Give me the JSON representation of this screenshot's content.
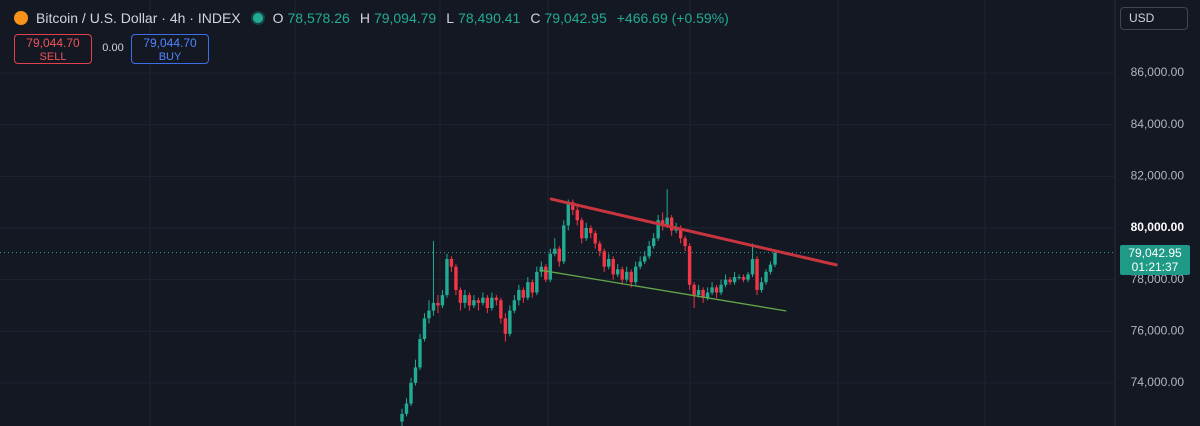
{
  "header": {
    "title": "Bitcoin / U.S. Dollar · 4h · INDEX",
    "open_key": "O",
    "open": "78,578.26",
    "high_key": "H",
    "high": "79,094.79",
    "low_key": "L",
    "low": "78,490.41",
    "close_key": "C",
    "close": "79,042.95",
    "change": "+466.69 (+0.59%)"
  },
  "trade": {
    "sell_price": "79,044.70",
    "sell": "SELL",
    "spread": "0.00",
    "buy_price": "79,044.70",
    "buy": "BUY"
  },
  "currency": "USD",
  "chart_data": {
    "type": "candlestick",
    "up_color": "#22ab94",
    "down_color": "#f23645",
    "open": [
      72500,
      72800,
      73200,
      74000,
      74600,
      75700,
      76500,
      76800,
      77100,
      77000,
      77400,
      78800,
      78500,
      77600,
      77100,
      77400,
      77000,
      77200,
      77100,
      77300,
      76900,
      77300,
      77200,
      76500,
      75900,
      76800,
      77200,
      77600,
      77300,
      77900,
      77500,
      78300,
      78500,
      78000,
      79000,
      79200,
      78700,
      80100,
      81000,
      80700,
      80300,
      79600,
      80000,
      79800,
      79400,
      79100,
      78500,
      78800,
      78200,
      78400,
      78000,
      78300,
      77900,
      78500,
      78700,
      78900,
      79300,
      79600,
      80300,
      80100,
      80400,
      79900,
      80000,
      79600,
      79300,
      77800,
      77400,
      77600,
      77300,
      77500,
      77700,
      77500,
      77800,
      78000,
      77900,
      78100,
      78100,
      78000,
      78200,
      78800,
      77600,
      77900,
      78300,
      78578.26
    ],
    "high": [
      73000,
      73400,
      74200,
      74900,
      75900,
      76700,
      77200,
      79500,
      77400,
      77600,
      79000,
      78900,
      78600,
      77700,
      77600,
      77500,
      77400,
      77300,
      77500,
      77400,
      77500,
      77400,
      77300,
      76700,
      77000,
      77400,
      77800,
      77700,
      78100,
      78000,
      78500,
      78700,
      78600,
      79200,
      79600,
      79300,
      80300,
      81100,
      81100,
      80900,
      80400,
      80200,
      80100,
      79900,
      79500,
      79200,
      79000,
      78900,
      78600,
      78500,
      78500,
      78400,
      78700,
      78900,
      79100,
      79500,
      79800,
      80500,
      80600,
      81500,
      80500,
      80200,
      80100,
      79700,
      79400,
      77900,
      77800,
      77700,
      77700,
      77900,
      77800,
      78000,
      78200,
      78100,
      78300,
      78200,
      78200,
      78300,
      79400,
      78900,
      78100,
      78400,
      78700,
      79094.79
    ],
    "low": [
      72300,
      72700,
      73100,
      73900,
      74500,
      75600,
      76300,
      76600,
      76700,
      76900,
      77300,
      78300,
      77400,
      76800,
      76900,
      76800,
      76900,
      76800,
      77000,
      76700,
      76800,
      77000,
      76300,
      75600,
      75800,
      76700,
      77000,
      77100,
      77200,
      77300,
      77400,
      78100,
      77900,
      77900,
      78900,
      78500,
      78600,
      79900,
      80500,
      80100,
      79400,
      79500,
      79600,
      79200,
      78900,
      78300,
      78400,
      78000,
      78100,
      77800,
      77900,
      77700,
      77800,
      78400,
      78600,
      78800,
      79200,
      79500,
      79900,
      80000,
      79700,
      79800,
      79400,
      79100,
      77600,
      76900,
      77300,
      77100,
      77200,
      77400,
      77300,
      77400,
      77700,
      77800,
      77800,
      78000,
      77900,
      77900,
      78100,
      77400,
      77500,
      77800,
      78200,
      78490.41
    ],
    "close": [
      72800,
      73200,
      74000,
      74600,
      75700,
      76500,
      76800,
      77100,
      77000,
      77400,
      78800,
      78500,
      77600,
      77100,
      77400,
      77000,
      77200,
      77100,
      77300,
      76900,
      77300,
      77200,
      76500,
      75900,
      76800,
      77200,
      77600,
      77300,
      77900,
      77500,
      78300,
      78500,
      78000,
      79000,
      79200,
      78700,
      80100,
      81000,
      80700,
      80300,
      79600,
      80000,
      79800,
      79400,
      79100,
      78500,
      78800,
      78200,
      78400,
      78000,
      78300,
      77900,
      78500,
      78700,
      78900,
      79300,
      79600,
      80300,
      80100,
      80400,
      79900,
      80000,
      79600,
      79300,
      77800,
      77400,
      77600,
      77300,
      77500,
      77700,
      77500,
      77800,
      78000,
      77900,
      78100,
      78100,
      78000,
      78200,
      78800,
      77600,
      77900,
      78300,
      78578.26,
      79042.95
    ],
    "ylim": [
      72330,
      88830
    ],
    "yticks": [
      {
        "value": 74000,
        "label": "74,000.00"
      },
      {
        "value": 76000,
        "label": "76,000.00"
      },
      {
        "value": 78000,
        "label": "78,000.00"
      },
      {
        "value": 80000,
        "label": "80,000.00"
      },
      {
        "value": 82000,
        "label": "82,000.00"
      },
      {
        "value": 84000,
        "label": "84,000.00"
      },
      {
        "value": 86000,
        "label": "86,000.00"
      }
    ],
    "highlight_tick": 80000,
    "grid": true,
    "last_price": {
      "value": 79042.95,
      "label": "79,042.95"
    },
    "countdown": "01:21:37",
    "trendlines": [
      {
        "color": "#c8353e",
        "x": [
          33.2,
          96.6
        ],
        "y": [
          81120,
          78570
        ]
      },
      {
        "color": "#5fa84a",
        "x": [
          30.7,
          85.4
        ],
        "y": [
          78370,
          76790
        ]
      }
    ]
  }
}
